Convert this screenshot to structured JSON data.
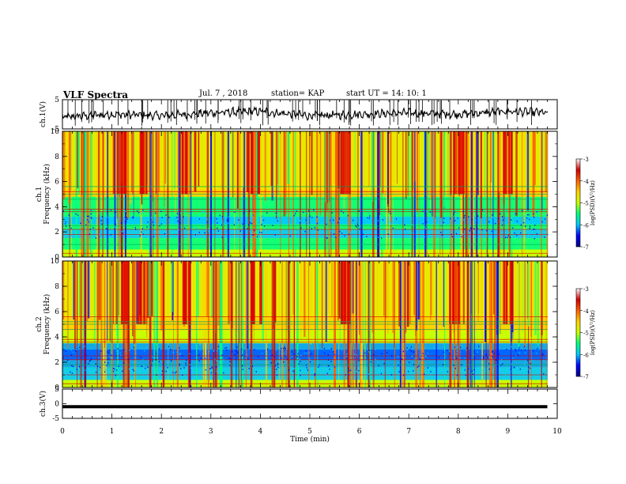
{
  "header": {
    "title": "VLF Spectra",
    "date": "Jul. 7 , 2018",
    "station": "station= KAP",
    "start": "start UT = 14: 10: 1"
  },
  "colors": {
    "waveform": "#000000",
    "colormap": [
      "#000080",
      "#0000ff",
      "#00c8ff",
      "#00ff80",
      "#c8ff00",
      "#ffd000",
      "#ff6000",
      "#d00000",
      "#ffffff"
    ]
  },
  "chart_data": [
    {
      "type": "line",
      "panel": "ch.1 waveform",
      "ylabel": "ch.1(V)",
      "ylim": [
        -5,
        5
      ],
      "yticks": [
        "5",
        "-5"
      ],
      "xlim": [
        0,
        10
      ],
      "series": [
        {
          "x": [
            0,
            1,
            2,
            3,
            4,
            5,
            6,
            7,
            8,
            9,
            9.8
          ],
          "values": [
            -1,
            0,
            -0.5,
            0.5,
            1,
            -0.5,
            0,
            0.5,
            0,
            1,
            0.5
          ]
        }
      ]
    },
    {
      "type": "heatmap",
      "panel": "ch.1 spectrogram",
      "ylabel_top": "ch.1",
      "ylabel": "Frequency (kHz)",
      "ylim": [
        0,
        10
      ],
      "yticks": [
        "0",
        "2",
        "4",
        "6",
        "8",
        "10"
      ],
      "xlim": [
        0,
        10
      ],
      "colorbar": {
        "label": "log(PSD)(V²/Hz)",
        "range": [
          -7,
          -3
        ],
        "ticks": [
          "-3",
          "-4",
          "-5",
          "-6",
          "-7"
        ]
      }
    },
    {
      "type": "heatmap",
      "panel": "ch.2 spectrogram",
      "ylabel_top": "ch.2",
      "ylabel": "Frequency (kHz)",
      "ylim": [
        0,
        10
      ],
      "yticks": [
        "0",
        "2",
        "4",
        "6",
        "8",
        "10"
      ],
      "xlim": [
        0,
        10
      ],
      "colorbar": {
        "label": "log(PSD)(V²/Hz)",
        "range": [
          -7,
          -3
        ],
        "ticks": [
          "-3",
          "-4",
          "-5",
          "-6",
          "-7"
        ]
      }
    },
    {
      "type": "line",
      "panel": "ch.3 waveform",
      "ylabel": "ch.3(V)",
      "ylim": [
        -5,
        5
      ],
      "yticks": [
        "5",
        "0",
        "-5"
      ],
      "xlabel": "Time (min)",
      "xlim": [
        0,
        10
      ],
      "xticks": [
        "0",
        "1",
        "2",
        "3",
        "4",
        "5",
        "6",
        "7",
        "8",
        "9",
        "10"
      ],
      "series": [
        {
          "x": [
            0,
            9.8
          ],
          "values": [
            -1,
            -1
          ]
        }
      ]
    }
  ]
}
